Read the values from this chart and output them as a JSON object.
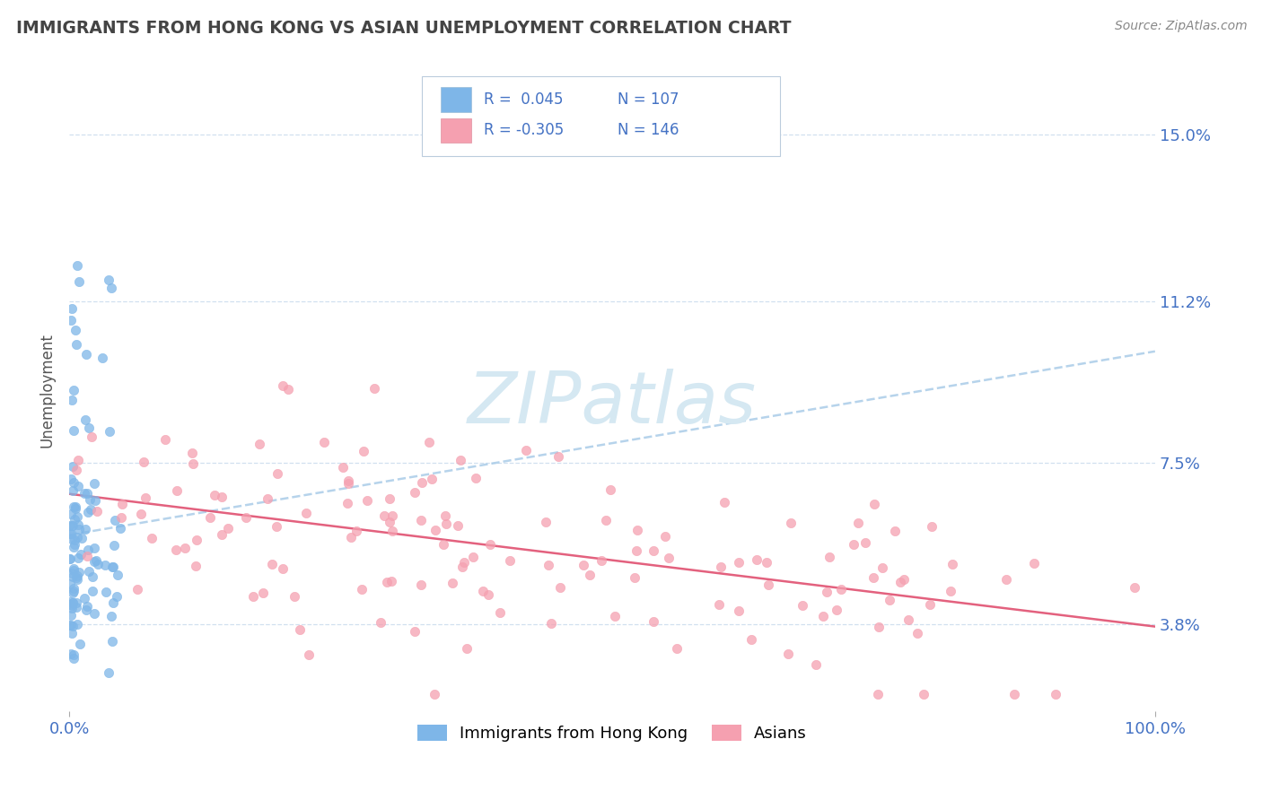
{
  "title": "IMMIGRANTS FROM HONG KONG VS ASIAN UNEMPLOYMENT CORRELATION CHART",
  "source": "Source: ZipAtlas.com",
  "ylabel": "Unemployment",
  "y_ticks": [
    0.038,
    0.075,
    0.112,
    0.15
  ],
  "y_tick_labels": [
    "3.8%",
    "7.5%",
    "11.2%",
    "15.0%"
  ],
  "x_lim": [
    0.0,
    1.0
  ],
  "y_lim": [
    0.018,
    0.165
  ],
  "blue_color": "#7EB6E8",
  "pink_color": "#F5A0B0",
  "trend_blue_color": "#AACCE8",
  "trend_pink_color": "#E05070",
  "title_color": "#444444",
  "axis_label_color": "#4472C4",
  "background_color": "#FFFFFF",
  "watermark_color": "#D5E8F2",
  "grid_color": "#CCDDEE",
  "source_color": "#888888"
}
